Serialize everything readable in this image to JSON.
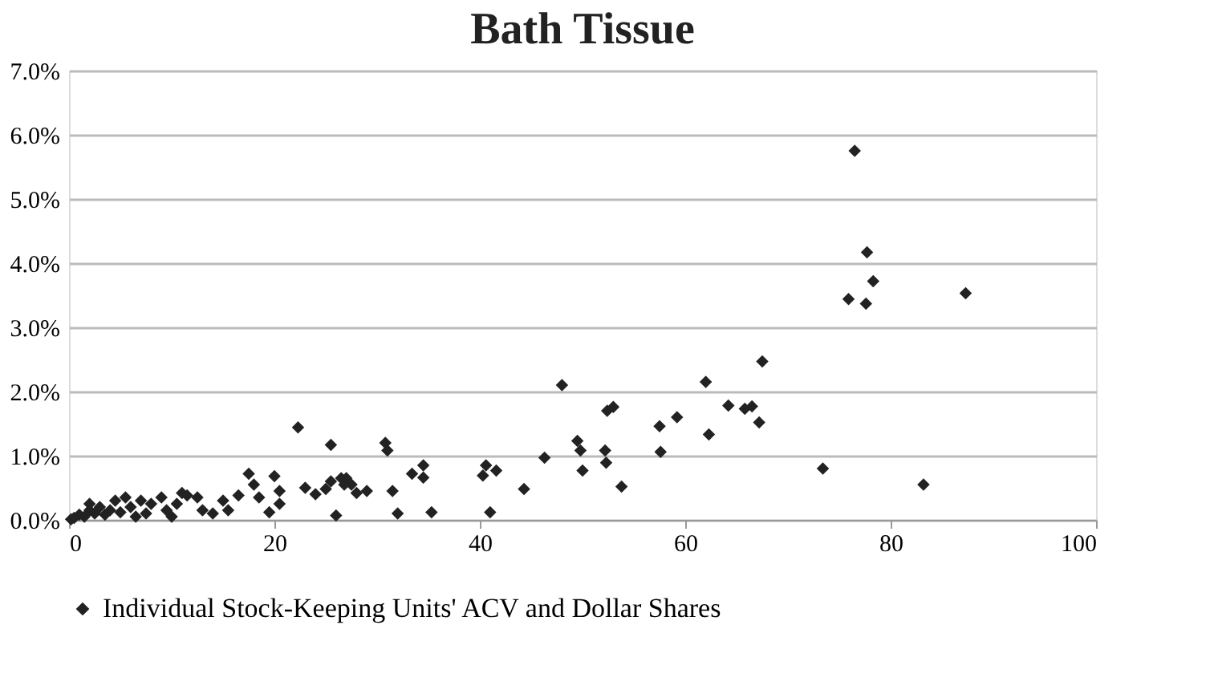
{
  "chart_data": {
    "type": "scatter",
    "title": "Bath Tissue",
    "x": [
      76.5,
      77.7,
      78.3,
      75.9,
      77.6,
      87.3,
      73.4,
      83.2,
      67.5,
      62,
      62.3,
      65.8,
      66.5,
      64.2,
      67.2,
      59.2,
      57.5,
      57.6,
      53.8,
      52.4,
      53,
      52.2,
      52.3,
      49.5,
      49.8,
      50,
      48,
      46.3,
      44.3,
      41.6,
      40.6,
      40.3,
      41,
      35.3,
      34.5,
      34.5,
      33.4,
      31.5,
      30.8,
      31,
      32,
      29,
      27.5,
      26.5,
      25.5,
      25,
      24,
      23,
      25.5,
      26,
      22.3,
      20.5,
      20,
      20.5,
      19.5,
      18.5,
      18,
      17.5,
      16.5,
      15,
      14,
      13,
      12.5,
      11.5,
      10.5,
      11,
      9.5,
      9,
      8,
      7.5,
      7,
      6,
      5.5,
      5,
      4.5,
      4,
      3.5,
      3,
      2.5,
      2,
      1.5,
      1,
      0.5,
      0.2,
      2,
      6.5,
      10,
      15.5,
      28,
      27,
      26.8
    ],
    "series": [
      {
        "name": "Individual Stock-Keeping Units' ACV and Dollar Shares",
        "color": "#222222",
        "values": [
          5.75,
          4.17,
          3.72,
          3.44,
          3.37,
          3.53,
          0.8,
          0.55,
          2.47,
          2.15,
          1.33,
          1.73,
          1.77,
          1.78,
          1.52,
          1.6,
          1.46,
          1.06,
          0.52,
          1.7,
          1.76,
          1.08,
          0.89,
          1.23,
          1.08,
          0.77,
          2.1,
          0.97,
          0.48,
          0.77,
          0.85,
          0.69,
          0.12,
          0.12,
          0.85,
          0.66,
          0.72,
          0.45,
          1.2,
          1.08,
          0.1,
          0.45,
          0.55,
          0.65,
          0.6,
          0.48,
          0.4,
          0.5,
          1.17,
          0.07,
          1.44,
          0.25,
          0.68,
          0.45,
          0.12,
          0.35,
          0.55,
          0.72,
          0.38,
          0.3,
          0.1,
          0.15,
          0.35,
          0.38,
          0.25,
          0.42,
          0.15,
          0.35,
          0.25,
          0.1,
          0.3,
          0.2,
          0.35,
          0.12,
          0.3,
          0.15,
          0.08,
          0.2,
          0.1,
          0.15,
          0.05,
          0.08,
          0.03,
          0.01,
          0.25,
          0.05,
          0.05,
          0.15,
          0.42,
          0.65,
          0.55
        ]
      }
    ],
    "xlim": [
      0,
      100
    ],
    "xticks": [
      0,
      20,
      40,
      60,
      80,
      100
    ],
    "ylim": [
      0,
      7
    ],
    "yticks": [
      {
        "value": 0,
        "label": "0.0%"
      },
      {
        "value": 1,
        "label": "1.0%"
      },
      {
        "value": 2,
        "label": "2.0%"
      },
      {
        "value": 3,
        "label": "3.0%"
      },
      {
        "value": 4,
        "label": "4.0%"
      },
      {
        "value": 5,
        "label": "5.0%"
      },
      {
        "value": 6,
        "label": "6.0%"
      },
      {
        "value": 7,
        "label": "7.0%"
      }
    ],
    "grid": "y",
    "legend": "bottom",
    "marker": "diamond"
  }
}
